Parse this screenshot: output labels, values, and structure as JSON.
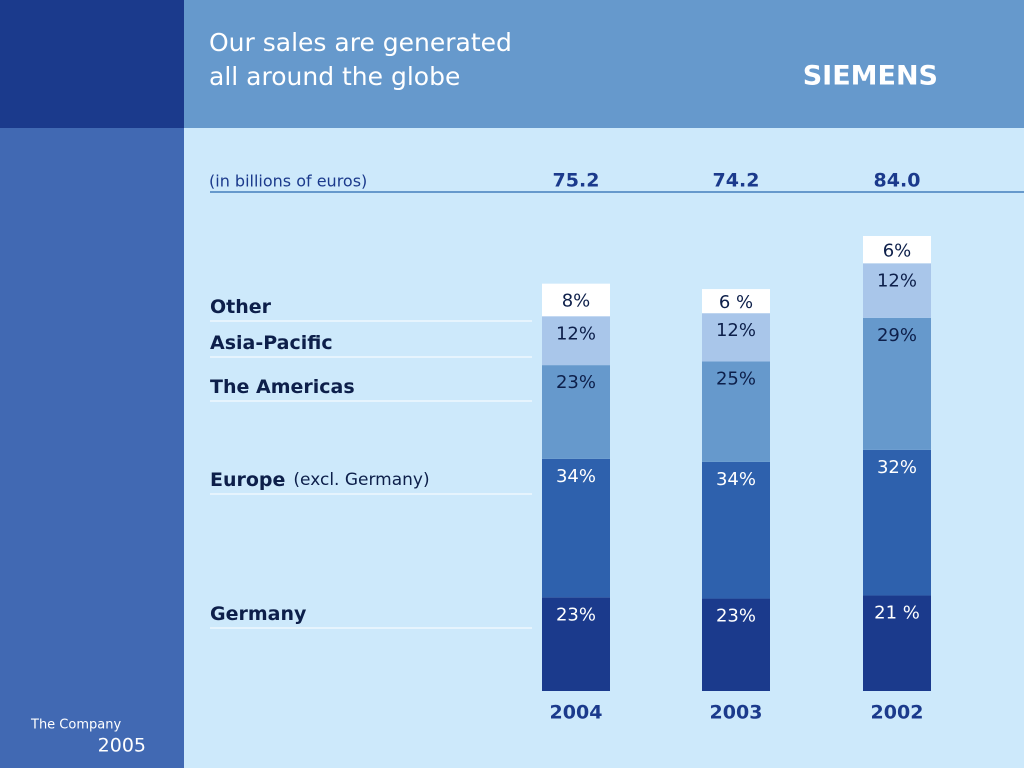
{
  "header": {
    "title_lines": [
      "Our sales are generated",
      "all around the globe"
    ],
    "brand": "SIEMENS"
  },
  "footer": {
    "section": "The Company",
    "year": "2005"
  },
  "chart_data": {
    "type": "stacked_bar",
    "unit_label": "(in billions of euros)",
    "categories": [
      "2004",
      "2003",
      "2002"
    ],
    "totals": [
      {
        "value": 75.2,
        "label": "75.2"
      },
      {
        "value": 74.2,
        "label": "74.2"
      },
      {
        "value": 84,
        "label": "84.0"
      }
    ],
    "series": [
      {
        "name": "Germany",
        "color": "#1b3a8c",
        "text_color": "#ffffff",
        "values": [
          23,
          23,
          21
        ],
        "value_labels": [
          "23%",
          "23%",
          "21 %"
        ]
      },
      {
        "name": "Europe",
        "note": "(excl. Germany)",
        "color": "#2e61ad",
        "text_color": "#ffffff",
        "values": [
          34,
          34,
          32
        ],
        "value_labels": [
          "34%",
          "34%",
          "32%"
        ]
      },
      {
        "name": "The Americas",
        "color": "#6699cc",
        "text_color": "#0d1f4a",
        "values": [
          23,
          25,
          29
        ],
        "value_labels": [
          "23%",
          "25%",
          "29%"
        ]
      },
      {
        "name": "Asia-Pacific",
        "color": "#a9c6ea",
        "text_color": "#0d1f4a",
        "values": [
          12,
          12,
          12
        ],
        "value_labels": [
          "12%",
          "12%",
          "12%"
        ]
      },
      {
        "name": "Other",
        "color": "#ffffff",
        "text_color": "#0d1f4a",
        "values": [
          8,
          6,
          6
        ],
        "value_labels": [
          "8%",
          "6 %",
          "6%"
        ]
      }
    ]
  }
}
